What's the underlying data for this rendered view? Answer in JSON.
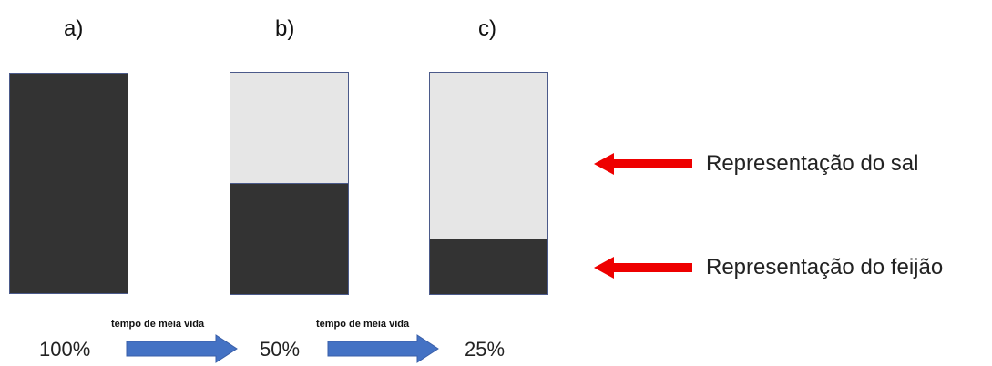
{
  "panels": [
    {
      "label": "a)",
      "dark_fraction": 1.0
    },
    {
      "label": "b)",
      "dark_fraction": 0.5
    },
    {
      "label": "c)",
      "dark_fraction": 0.25
    }
  ],
  "percentages": [
    "100%",
    "50%",
    "25%"
  ],
  "arrow_caption": "tempo de meia vida",
  "legend": {
    "salt": "Representação do sal",
    "bean": "Representação do feijão"
  },
  "colors": {
    "dark": "#333333",
    "light": "#e6e6e6",
    "border": "#4b5a8a",
    "blue_arrow": "#4472c4",
    "red_arrow": "#ee0000"
  }
}
